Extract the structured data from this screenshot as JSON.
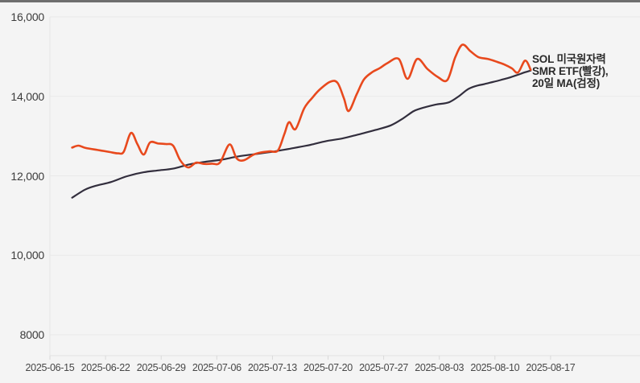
{
  "page": {
    "background": "#f4f4f4",
    "top_bar_color": "#6e6e6e"
  },
  "chart_data": {
    "type": "line",
    "title": "",
    "grid": "horizontal",
    "legend": {
      "position": "right-of-line-end",
      "lines": [
        "SOL 미국원자력",
        "SMR ETF(빨강),",
        "20일 MA(검정)"
      ]
    },
    "y_axis": {
      "min": 8000,
      "max": 16000,
      "ticks": [
        {
          "label": "16,000",
          "value": 16000
        },
        {
          "label": "14,000",
          "value": 14000
        },
        {
          "label": "12,000",
          "value": 12000
        },
        {
          "label": "10,000",
          "value": 10000
        },
        {
          "label": "8000",
          "value": 8000
        }
      ]
    },
    "x_axis": {
      "ticks": [
        {
          "label": "2025-06-15",
          "day": 0
        },
        {
          "label": "2025-06-22",
          "day": 7
        },
        {
          "label": "2025-06-29",
          "day": 14
        },
        {
          "label": "2025-07-06",
          "day": 21
        },
        {
          "label": "2025-07-13",
          "day": 28
        },
        {
          "label": "2025-07-20",
          "day": 35
        },
        {
          "label": "2025-07-27",
          "day": 42
        },
        {
          "label": "2025-08-03",
          "day": 49
        },
        {
          "label": "2025-08-10",
          "day": 56
        },
        {
          "label": "2025-08-17",
          "day": 63
        }
      ]
    },
    "series": [
      {
        "name": "SOL 미국원자력 SMR ETF",
        "legend_color_word": "빨강",
        "color": "#e8491d",
        "stroke_width": 2.6,
        "points": [
          [
            2.8,
            12710
          ],
          [
            3.6,
            12760
          ],
          [
            4.5,
            12700
          ],
          [
            6.0,
            12650
          ],
          [
            7.5,
            12600
          ],
          [
            8.6,
            12565
          ],
          [
            9.3,
            12610
          ],
          [
            10.2,
            13080
          ],
          [
            11.0,
            12800
          ],
          [
            11.8,
            12535
          ],
          [
            12.6,
            12840
          ],
          [
            13.6,
            12815
          ],
          [
            14.6,
            12800
          ],
          [
            15.5,
            12760
          ],
          [
            16.4,
            12390
          ],
          [
            17.4,
            12210
          ],
          [
            18.4,
            12330
          ],
          [
            19.4,
            12300
          ],
          [
            20.4,
            12305
          ],
          [
            21.4,
            12335
          ],
          [
            22.6,
            12790
          ],
          [
            23.5,
            12440
          ],
          [
            24.4,
            12390
          ],
          [
            25.6,
            12530
          ],
          [
            26.6,
            12590
          ],
          [
            27.7,
            12615
          ],
          [
            28.7,
            12640
          ],
          [
            29.5,
            13050
          ],
          [
            30.1,
            13350
          ],
          [
            30.9,
            13175
          ],
          [
            32.0,
            13700
          ],
          [
            33.0,
            13960
          ],
          [
            34.0,
            14180
          ],
          [
            35.3,
            14370
          ],
          [
            36.2,
            14340
          ],
          [
            37.0,
            13950
          ],
          [
            37.6,
            13630
          ],
          [
            38.6,
            14050
          ],
          [
            39.5,
            14420
          ],
          [
            40.5,
            14600
          ],
          [
            41.5,
            14710
          ],
          [
            42.5,
            14840
          ],
          [
            43.9,
            14940
          ],
          [
            45.0,
            14440
          ],
          [
            46.2,
            14940
          ],
          [
            47.5,
            14690
          ],
          [
            48.8,
            14490
          ],
          [
            50.0,
            14410
          ],
          [
            51.0,
            14980
          ],
          [
            51.9,
            15300
          ],
          [
            52.9,
            15140
          ],
          [
            53.9,
            14990
          ],
          [
            55.1,
            14940
          ],
          [
            56.1,
            14880
          ],
          [
            57.1,
            14810
          ],
          [
            58.1,
            14710
          ],
          [
            58.9,
            14600
          ],
          [
            59.8,
            14900
          ],
          [
            60.5,
            14670
          ]
        ]
      },
      {
        "name": "20일 MA",
        "legend_color_word": "검정",
        "color": "#322e3d",
        "stroke_width": 2.2,
        "points": [
          [
            2.8,
            11450
          ],
          [
            4.4,
            11650
          ],
          [
            5.7,
            11745
          ],
          [
            7.7,
            11845
          ],
          [
            9.7,
            11990
          ],
          [
            11.8,
            12090
          ],
          [
            13.6,
            12135
          ],
          [
            15.5,
            12180
          ],
          [
            17.5,
            12285
          ],
          [
            19.6,
            12355
          ],
          [
            21.6,
            12405
          ],
          [
            23.6,
            12485
          ],
          [
            25.6,
            12540
          ],
          [
            27.7,
            12595
          ],
          [
            28.7,
            12630
          ],
          [
            30.7,
            12700
          ],
          [
            32.8,
            12780
          ],
          [
            34.8,
            12875
          ],
          [
            36.8,
            12940
          ],
          [
            38.8,
            13040
          ],
          [
            40.9,
            13150
          ],
          [
            42.9,
            13270
          ],
          [
            44.4,
            13440
          ],
          [
            45.7,
            13620
          ],
          [
            46.5,
            13685
          ],
          [
            48.5,
            13790
          ],
          [
            50.2,
            13850
          ],
          [
            51.5,
            14010
          ],
          [
            52.6,
            14180
          ],
          [
            53.6,
            14260
          ],
          [
            54.7,
            14310
          ],
          [
            55.7,
            14360
          ],
          [
            56.7,
            14410
          ],
          [
            57.7,
            14465
          ],
          [
            58.7,
            14530
          ],
          [
            59.7,
            14600
          ],
          [
            60.5,
            14650
          ]
        ]
      }
    ]
  }
}
